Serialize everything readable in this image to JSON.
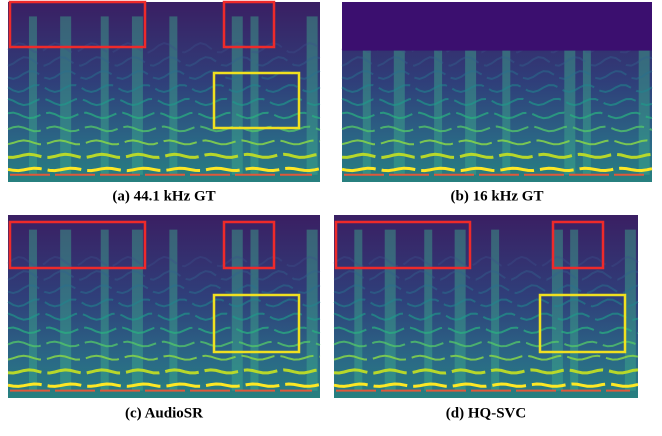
{
  "panels": [
    {
      "caption": "(a) 44.1 kHz GT"
    },
    {
      "caption": "(b) 16 kHz GT"
    },
    {
      "caption": "(c) AudioSR"
    },
    {
      "caption": "(d) HQ-SVC"
    }
  ]
}
